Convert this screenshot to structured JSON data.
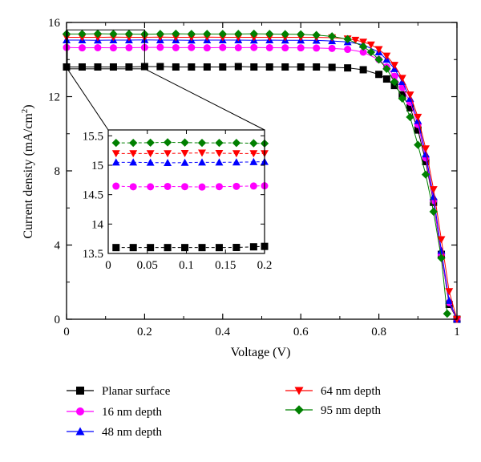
{
  "chart_data": {
    "type": "line",
    "xlabel": "Voltage (V)",
    "ylabel_main": "Current density (mA/cm",
    "ylabel_sup": "2",
    "ylabel_close": ")",
    "xlim": [
      0,
      1
    ],
    "ylim": [
      0,
      16
    ],
    "xticks": [
      "0",
      "0.2",
      "0.4",
      "0.6",
      "0.8",
      "1"
    ],
    "yticks": [
      "0",
      "4",
      "8",
      "12",
      "16"
    ],
    "grid": false,
    "legend_position": "bottom",
    "series": [
      {
        "name": "Planar surface",
        "color": "#000000",
        "marker": "square",
        "x": [
          0,
          0.04,
          0.08,
          0.12,
          0.16,
          0.2,
          0.24,
          0.28,
          0.32,
          0.36,
          0.4,
          0.44,
          0.48,
          0.52,
          0.56,
          0.6,
          0.64,
          0.68,
          0.72,
          0.76,
          0.8,
          0.82,
          0.84,
          0.86,
          0.88,
          0.9,
          0.92,
          0.94,
          0.96,
          0.98,
          1.0
        ],
        "y": [
          13.6,
          13.6,
          13.6,
          13.6,
          13.6,
          13.62,
          13.62,
          13.6,
          13.6,
          13.6,
          13.6,
          13.62,
          13.6,
          13.6,
          13.6,
          13.6,
          13.6,
          13.58,
          13.55,
          13.45,
          13.2,
          12.95,
          12.6,
          12.1,
          11.4,
          10.2,
          8.5,
          6.3,
          3.5,
          0.8,
          0.0
        ]
      },
      {
        "name": "16 nm depth",
        "color": "#ff00ff",
        "marker": "circle",
        "x": [
          0,
          0.04,
          0.08,
          0.12,
          0.16,
          0.2,
          0.24,
          0.28,
          0.32,
          0.36,
          0.4,
          0.44,
          0.48,
          0.52,
          0.56,
          0.6,
          0.64,
          0.68,
          0.72,
          0.76,
          0.8,
          0.82,
          0.84,
          0.86,
          0.88,
          0.9,
          0.92,
          0.94,
          0.96,
          0.98,
          1.0
        ],
        "y": [
          14.65,
          14.63,
          14.64,
          14.63,
          14.64,
          14.65,
          14.66,
          14.64,
          14.65,
          14.63,
          14.65,
          14.64,
          14.65,
          14.64,
          14.63,
          14.63,
          14.62,
          14.6,
          14.55,
          14.4,
          14.0,
          13.6,
          13.1,
          12.5,
          11.7,
          10.5,
          8.7,
          6.4,
          3.5,
          0.9,
          0.0
        ]
      },
      {
        "name": "48 nm depth",
        "color": "#0000ff",
        "marker": "triangle",
        "x": [
          0,
          0.04,
          0.08,
          0.12,
          0.16,
          0.2,
          0.24,
          0.28,
          0.32,
          0.36,
          0.4,
          0.44,
          0.48,
          0.52,
          0.56,
          0.6,
          0.64,
          0.68,
          0.72,
          0.76,
          0.8,
          0.82,
          0.84,
          0.86,
          0.88,
          0.9,
          0.92,
          0.94,
          0.96,
          0.98,
          1.0
        ],
        "y": [
          15.05,
          15.05,
          15.04,
          15.05,
          15.05,
          15.06,
          15.05,
          15.05,
          15.04,
          15.05,
          15.05,
          15.05,
          15.04,
          15.05,
          15.04,
          15.04,
          15.03,
          15.0,
          14.95,
          14.8,
          14.4,
          14.0,
          13.5,
          12.8,
          11.9,
          10.7,
          8.9,
          6.6,
          3.7,
          1.0,
          0.0
        ]
      },
      {
        "name": "64 nm depth",
        "color": "#ff0000",
        "marker": "triangle-down",
        "x": [
          0,
          0.04,
          0.08,
          0.12,
          0.16,
          0.2,
          0.24,
          0.28,
          0.32,
          0.36,
          0.4,
          0.44,
          0.48,
          0.52,
          0.56,
          0.6,
          0.64,
          0.68,
          0.72,
          0.74,
          0.76,
          0.78,
          0.8,
          0.82,
          0.84,
          0.86,
          0.88,
          0.9,
          0.92,
          0.94,
          0.96,
          0.98,
          1.0
        ],
        "y": [
          15.2,
          15.2,
          15.2,
          15.21,
          15.2,
          15.2,
          15.21,
          15.2,
          15.2,
          15.21,
          15.2,
          15.2,
          15.2,
          15.2,
          15.2,
          15.2,
          15.2,
          15.18,
          15.12,
          15.05,
          14.95,
          14.8,
          14.55,
          14.2,
          13.7,
          13.0,
          12.1,
          10.9,
          9.2,
          7.0,
          4.3,
          1.5,
          0.0
        ]
      },
      {
        "name": "95 nm depth",
        "color": "#008000",
        "marker": "diamond",
        "x": [
          0,
          0.04,
          0.08,
          0.12,
          0.16,
          0.2,
          0.24,
          0.28,
          0.32,
          0.36,
          0.4,
          0.44,
          0.48,
          0.52,
          0.56,
          0.6,
          0.64,
          0.68,
          0.72,
          0.76,
          0.78,
          0.8,
          0.82,
          0.84,
          0.86,
          0.88,
          0.9,
          0.92,
          0.94,
          0.96,
          0.975
        ],
        "y": [
          15.38,
          15.38,
          15.39,
          15.38,
          15.38,
          15.37,
          15.38,
          15.39,
          15.38,
          15.38,
          15.38,
          15.38,
          15.39,
          15.38,
          15.37,
          15.36,
          15.32,
          15.25,
          15.1,
          14.7,
          14.4,
          14.0,
          13.5,
          12.8,
          11.9,
          10.9,
          9.4,
          7.8,
          5.8,
          3.3,
          0.3
        ]
      }
    ],
    "inset": {
      "xlim": [
        0,
        0.2
      ],
      "ylim": [
        13.5,
        15.6
      ],
      "xticks": [
        "0",
        "0.05",
        "0.1",
        "0.15",
        "0.2"
      ],
      "yticks": [
        "13.5",
        "14",
        "14.5",
        "15",
        "15.5"
      ],
      "x": [
        0.01,
        0.032,
        0.054,
        0.076,
        0.098,
        0.12,
        0.142,
        0.164,
        0.186,
        0.2
      ]
    }
  }
}
